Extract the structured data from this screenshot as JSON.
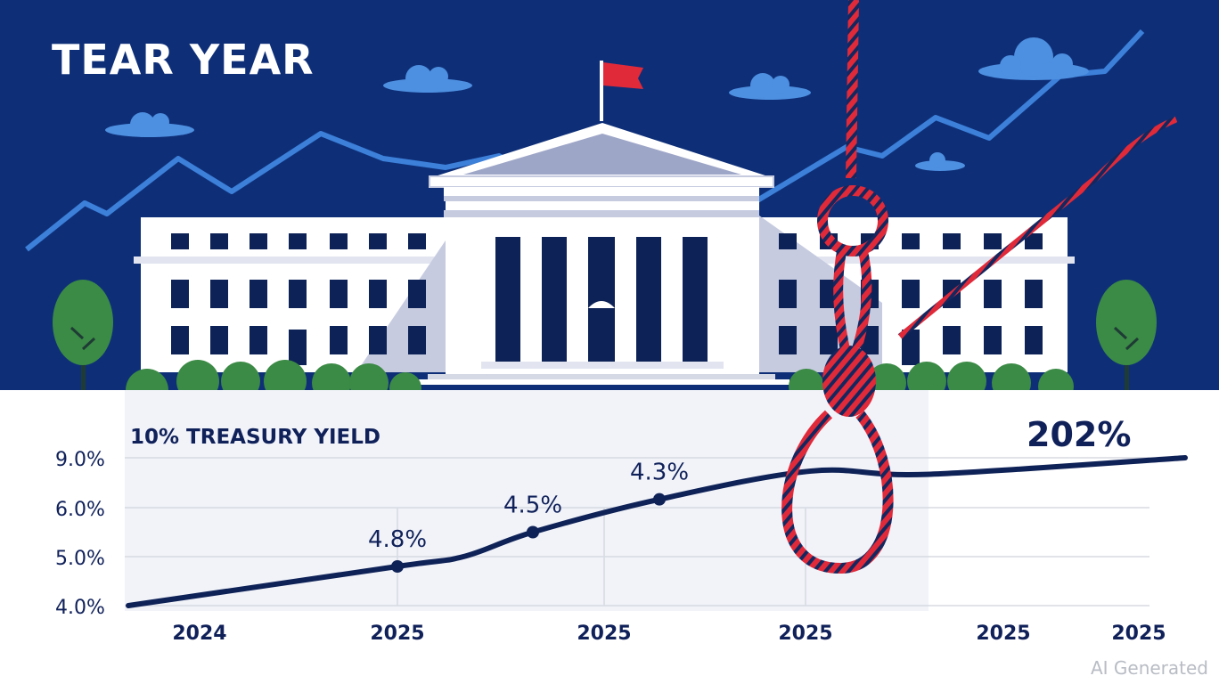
{
  "header": {
    "headline": "TEAR YEAR"
  },
  "chart": {
    "title": "10% TREASURY YIELD",
    "callout": "202%"
  },
  "watermark": "AI Generated",
  "colors": {
    "sky": "#0e2f78",
    "trend_line": "#3c80da",
    "cloud": "#4d8fe0",
    "building": "#ffffff",
    "building_shade": "#c6cbe0",
    "window": "#0d2257",
    "flag": "#e02a3a",
    "rope_red": "#e02a3a",
    "rope_navy": "#14275e",
    "tree": "#3b8a45",
    "curve": "#0f2257",
    "grid": "#d7dae2"
  },
  "icons": [
    "flag-icon",
    "cloud-icon",
    "tree-icon",
    "noose-icon",
    "government-building-icon"
  ],
  "chart_data": {
    "type": "line",
    "title": "10% TREASURY YIELD",
    "y_tick_labels": [
      "4.0%",
      "5.0%",
      "6.0%",
      "9.0%"
    ],
    "x_tick_labels": [
      "2024",
      "2025",
      "2025",
      "2025",
      "2025",
      "2025"
    ],
    "series": [
      {
        "points": [
          {
            "x": "2024",
            "y": 4.0
          },
          {
            "x": "2025",
            "y": 4.8
          },
          {
            "x": "2025",
            "y": 5.0
          },
          {
            "x": "2025",
            "y": 5.5
          },
          {
            "x": "2025",
            "y": 6.5
          },
          {
            "x": "2025",
            "y": 8.2
          },
          {
            "x": "2025",
            "y": 8.0
          },
          {
            "x": "2025",
            "y": 9.0
          }
        ]
      }
    ],
    "markers": [
      {
        "label": "4.8%"
      },
      {
        "label": "4.5%"
      },
      {
        "label": "4.3%"
      }
    ],
    "annotation": "202%",
    "grid": true,
    "legend": "none"
  }
}
